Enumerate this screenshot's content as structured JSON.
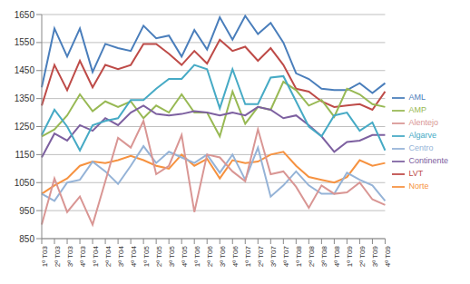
{
  "chart_data": {
    "type": "line",
    "categories": [
      "1º T03",
      "2º T03",
      "3º T03",
      "4º T03",
      "1º T04",
      "2º T04",
      "3º T04",
      "4º T04",
      "1º T05",
      "2º T05",
      "3º T05",
      "4º T05",
      "1º T06",
      "2º T06",
      "3º T06",
      "4º T06",
      "1º T07",
      "2º T07",
      "3º T07",
      "4º T07",
      "1º T08",
      "2º T08",
      "3º T08",
      "4º T08",
      "1º T09",
      "2º T09",
      "3º T09",
      "4º T09"
    ],
    "series": [
      {
        "name": "AML",
        "color": "#4a7ebb",
        "values": [
          1390,
          1600,
          1500,
          1600,
          1445,
          1545,
          1530,
          1520,
          1610,
          1565,
          1575,
          1500,
          1595,
          1525,
          1640,
          1560,
          1645,
          1580,
          1620,
          1550,
          1440,
          1420,
          1385,
          1380,
          1380,
          1405,
          1370,
          1405
        ]
      },
      {
        "name": "LVT",
        "color": "#be4b48",
        "values": [
          1325,
          1470,
          1380,
          1485,
          1390,
          1470,
          1455,
          1470,
          1545,
          1545,
          1510,
          1470,
          1520,
          1475,
          1560,
          1520,
          1535,
          1485,
          1530,
          1470,
          1385,
          1375,
          1340,
          1320,
          1325,
          1330,
          1310,
          1375
        ]
      },
      {
        "name": "AMP",
        "color": "#98b954",
        "values": [
          1215,
          1240,
          1290,
          1365,
          1305,
          1340,
          1320,
          1340,
          1280,
          1325,
          1300,
          1365,
          1300,
          1300,
          1215,
          1375,
          1260,
          1320,
          1310,
          1410,
          1380,
          1325,
          1345,
          1285,
          1385,
          1365,
          1330,
          1320
        ]
      },
      {
        "name": "Continente",
        "color": "#7d60a0",
        "values": [
          1140,
          1225,
          1200,
          1255,
          1235,
          1280,
          1255,
          1300,
          1325,
          1295,
          1290,
          1295,
          1305,
          1300,
          1290,
          1300,
          1290,
          1320,
          1310,
          1280,
          1290,
          1255,
          1215,
          1160,
          1195,
          1200,
          1220,
          1220
        ]
      },
      {
        "name": "Algarve",
        "color": "#46aac5",
        "values": [
          1220,
          1310,
          1250,
          1165,
          1255,
          1270,
          1280,
          1345,
          1345,
          1385,
          1420,
          1420,
          1470,
          1455,
          1315,
          1455,
          1330,
          1330,
          1425,
          1430,
          1340,
          1250,
          1215,
          1290,
          1300,
          1235,
          1265,
          1165
        ]
      },
      {
        "name": "Norte",
        "color": "#f69240",
        "values": [
          1010,
          1040,
          1065,
          1110,
          1125,
          1120,
          1130,
          1145,
          1130,
          1110,
          1100,
          1150,
          1110,
          1135,
          1065,
          1130,
          1120,
          1125,
          1150,
          1160,
          1110,
          1070,
          1060,
          1050,
          1070,
          1130,
          1110,
          1120
        ]
      },
      {
        "name": "Centro",
        "color": "#95b3d7",
        "values": [
          1010,
          985,
          1050,
          1060,
          1125,
          1090,
          1045,
          1110,
          1180,
          1120,
          1160,
          1140,
          1120,
          1150,
          1085,
          1150,
          1060,
          1175,
          1000,
          1040,
          1090,
          1040,
          1010,
          1010,
          1085,
          1060,
          1040,
          985
        ]
      },
      {
        "name": "Alentejo",
        "color": "#d99694",
        "values": [
          900,
          1065,
          945,
          1000,
          900,
          1055,
          1210,
          1175,
          1270,
          1080,
          1110,
          1220,
          945,
          1150,
          1140,
          1090,
          1055,
          1240,
          1080,
          1090,
          1035,
          960,
          1040,
          1010,
          1015,
          1050,
          990,
          970
        ]
      }
    ],
    "ylim": [
      850,
      1650
    ],
    "yticks": [
      850,
      950,
      1050,
      1150,
      1250,
      1350,
      1450,
      1550,
      1650
    ],
    "grid": true,
    "legend": "right"
  }
}
